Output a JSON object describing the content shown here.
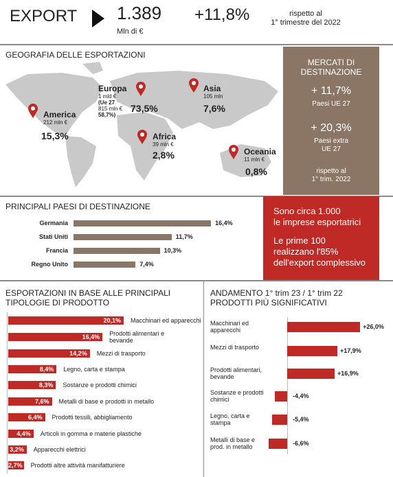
{
  "header": {
    "title": "EXPORT",
    "value": "1.389",
    "unit": "Mln di €",
    "change": "+11,8%",
    "note": [
      "rispetto al",
      "1° trimestre del 2022"
    ]
  },
  "geography": {
    "title": "GEOGRAFIA DELLE ESPORTAZIONI",
    "regions": [
      {
        "name": "Europa",
        "details": [
          "1 mld €",
          "(Ue 27",
          "815 mln €",
          "58,7%)"
        ],
        "share": "73,5%"
      },
      {
        "name": "America",
        "details": [
          "212 mln €"
        ],
        "share": "15,3%"
      },
      {
        "name": "Asia",
        "details": [
          "105 mln"
        ],
        "share": "7,6%"
      },
      {
        "name": "Africa",
        "details": [
          "39 mln €"
        ],
        "share": "2,8%"
      },
      {
        "name": "Oceania",
        "details": [
          "11 mln €"
        ],
        "share": "0,8%"
      }
    ]
  },
  "markets": {
    "title": [
      "MERCATI DI",
      "DESTINAZIONE"
    ],
    "items": [
      {
        "value": "+ 11,7%",
        "label": [
          "Paesi UE 27"
        ]
      },
      {
        "value": "+ 20,3%",
        "label": [
          "Paesi extra",
          "UE 27"
        ]
      }
    ],
    "note": [
      "rispetto al",
      "1° trim. 2022"
    ]
  },
  "companies": {
    "first": [
      "Sono circa 1.000",
      "le imprese esportatrici"
    ],
    "second": [
      "Le prime 100",
      "realizzano l'85%",
      "dell'export complessivo"
    ]
  },
  "chart_data": [
    {
      "type": "hbar",
      "title": "PRINCIPALI PAESI DI DESTINAZIONE",
      "color": "#8b7565",
      "categories": [
        "Germania",
        "Stati Uniti",
        "Francia",
        "Regno Unito"
      ],
      "values": [
        16.4,
        11.7,
        10.3,
        7.4
      ],
      "value_labels": [
        "16,4%",
        "11,7%",
        "10,3%",
        "7,4%"
      ]
    },
    {
      "type": "hbar",
      "title": "ESPORTAZIONI IN BASE ALLE PRINCIPALI TIPOLOGIE DI PRODOTTO",
      "color": "#bf2a26",
      "categories": [
        "Macchinari ed apparecchi",
        "Prodotti alimentari e bevande",
        "Mezzi di trasporto",
        "Legno, carta e stampa",
        "Sostanze e prodotti chimici",
        "Metalli di base e prodotti in metallo",
        "Prodotti tessili, abbigliamento",
        "Articoli in gomma e materie plastiche",
        "Apparecchi elettrici",
        "Prodotti altre attività manifatturiere"
      ],
      "values": [
        20.1,
        16.4,
        14.2,
        8.4,
        8.3,
        7.6,
        6.4,
        4.4,
        3.2,
        2.7
      ],
      "value_labels": [
        "20,1%",
        "16,4%",
        "14,2%",
        "8,4%",
        "8,3%",
        "7,6%",
        "6,4%",
        "4,4%",
        "3,2%",
        "2,7%"
      ]
    },
    {
      "type": "hbar",
      "title": [
        "ANDAMENTO 1° trim 23 / 1° trim 22",
        "PRODOTTI PIÙ SIGNIFICATIVI"
      ],
      "color": "#bf2a26",
      "categories": [
        "Macchinari ed apparecchi",
        "Mezzi di trasporto",
        "Prodotti alimentari, bevande",
        "Sostanze e prodotti chimici",
        "Legno, carta e stampa",
        "Metalli di base e prod. in metallo"
      ],
      "values": [
        26.0,
        17.9,
        16.9,
        -4.4,
        -5.4,
        -6.6
      ],
      "value_labels": [
        "+26,0%",
        "+17,9%",
        "+16,9%",
        "-4,4%",
        "-5,4%",
        "-6,6%"
      ]
    }
  ]
}
